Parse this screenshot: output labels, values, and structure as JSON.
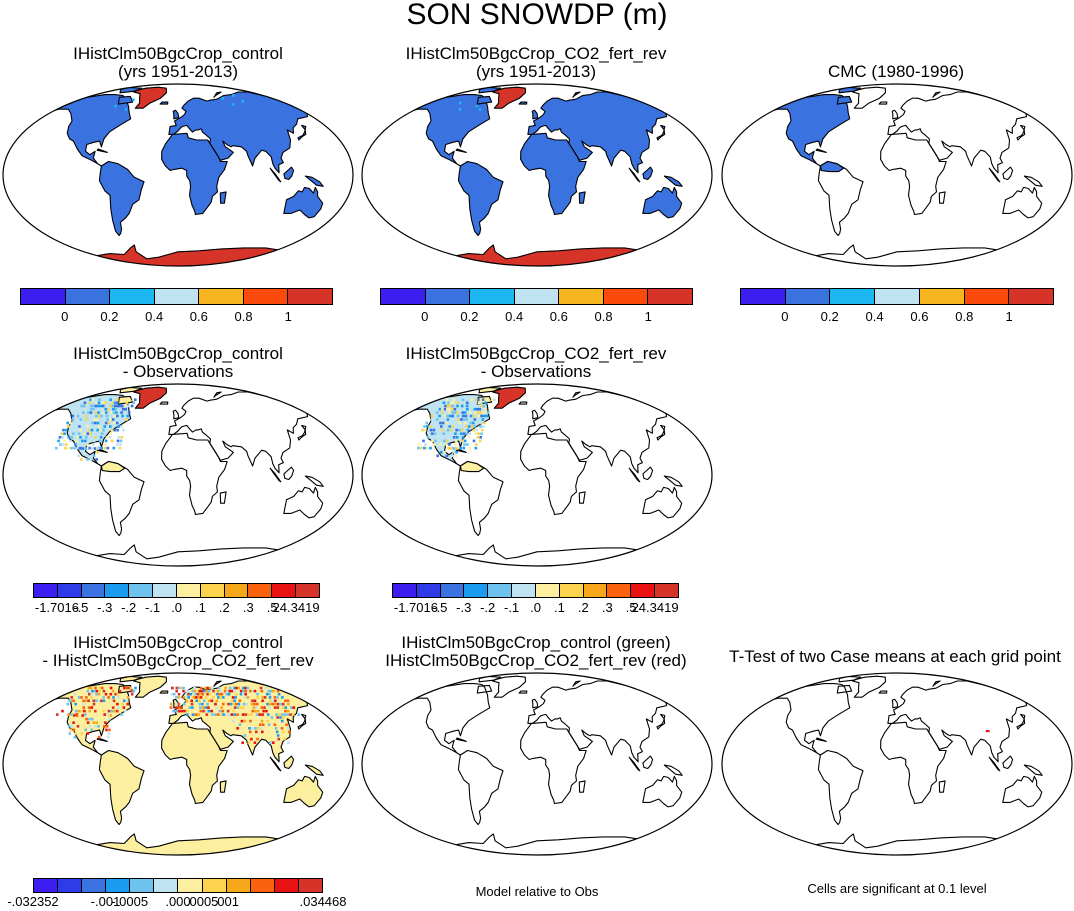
{
  "title": "SON SNOWDP (m)",
  "panels": {
    "p1": {
      "line1": "IHistClm50BgcCrop_control",
      "line2": "(yrs 1951-2013)"
    },
    "p2": {
      "line1": "IHistClm50BgcCrop_CO2_fert_rev",
      "line2": "(yrs 1951-2013)"
    },
    "p3": {
      "line1": "CMC (1980-1996)"
    },
    "p4": {
      "line1": "IHistClm50BgcCrop_control",
      "line2": "- Observations"
    },
    "p5": {
      "line1": "IHistClm50BgcCrop_CO2_fert_rev",
      "line2": "- Observations"
    },
    "p7": {
      "line1": "IHistClm50BgcCrop_control",
      "line2": "- IHistClm50BgcCrop_CO2_fert_rev"
    },
    "p8": {
      "line1": "IHistClm50BgcCrop_control (green)",
      "line2": "IHistClm50BgcCrop_CO2_fert_rev (red)"
    },
    "p9": {
      "line1": "T-Test of two Case means at each grid point"
    }
  },
  "colorbars": {
    "abs": {
      "colors": [
        "#3c1ef0",
        "#3a72df",
        "#1cb6f0",
        "#bfe3f0",
        "#f7b51f",
        "#fb4b0c",
        "#d73429"
      ],
      "labels": [
        "0",
        "0.2",
        "0.4",
        "0.6",
        "0.8",
        "1"
      ]
    },
    "diff": {
      "colors": [
        "#3c1ef0",
        "#2f3ae8",
        "#3a72df",
        "#1b9cf0",
        "#6ec3ee",
        "#bfe3f0",
        "#fcf0a0",
        "#fbd34c",
        "#f7a71a",
        "#fb620e",
        "#e81212",
        "#d73429"
      ],
      "labels": [
        "-1.7016",
        "-.5",
        "-.3",
        "-.2",
        "-.1",
        ".0",
        ".1",
        ".2",
        ".3",
        ".5",
        "24.3419"
      ]
    },
    "casediff": {
      "colors": [
        "#3c1ef0",
        "#2f3ae8",
        "#3a72df",
        "#1b9cf0",
        "#6ec3ee",
        "#bfe3f0",
        "#fcf0a0",
        "#fbd34c",
        "#f7a71a",
        "#fb620e",
        "#e81212",
        "#d73429"
      ],
      "labels": [
        "-.032352",
        "-.001",
        "-.0005",
        ".000",
        ".0005",
        ".001",
        ".034468"
      ]
    }
  },
  "footnotes": {
    "model_rel": "Model relative to Obs",
    "cells_sig": "Cells are significant at 0.1 level"
  },
  "legend_colors": {
    "ocean": "#ffffff",
    "land_outline": "#000000"
  }
}
